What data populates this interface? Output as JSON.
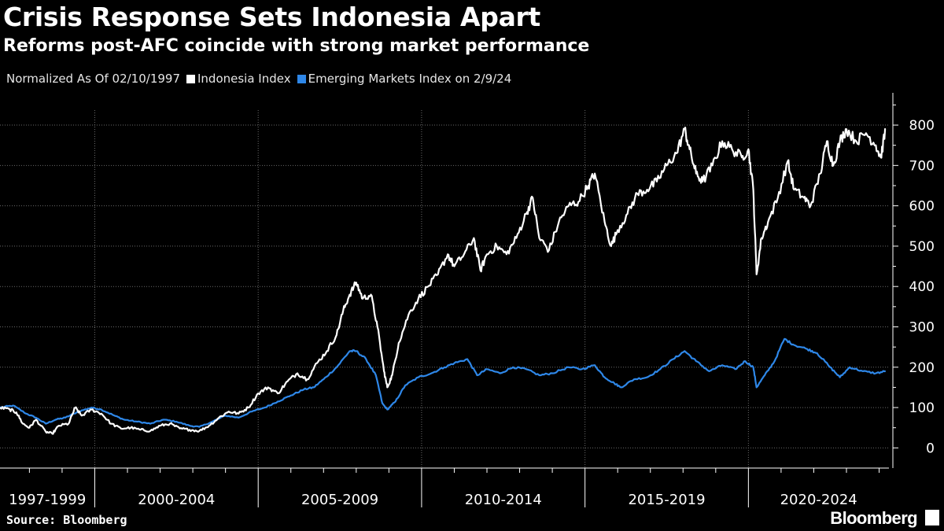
{
  "header": {
    "title": "Crisis Response Sets Indonesia Apart",
    "subtitle": "Reforms post-AFC coincide with strong market performance"
  },
  "legend": {
    "note": "Normalized As Of 02/10/1997",
    "items": [
      {
        "label": "Indonesia Index",
        "color": "#ffffff"
      },
      {
        "label": "Emerging Markets Index on 2/9/24",
        "color": "#2e87e8"
      }
    ]
  },
  "footer": {
    "source": "Source: Bloomberg",
    "brand": "Bloomberg"
  },
  "chart_data": {
    "type": "line",
    "title": "Crisis Response Sets Indonesia Apart",
    "xlabel": "",
    "ylabel": "",
    "ylim": [
      -50,
      880
    ],
    "yticks": [
      0,
      100,
      200,
      300,
      400,
      500,
      600,
      700,
      800
    ],
    "xlim": [
      1997.1,
      2024.3
    ],
    "x_period_labels": [
      "1997-1999",
      "2000-2004",
      "2005-2009",
      "2010-2014",
      "2015-2019",
      "2020-2024"
    ],
    "x_period_bounds": [
      2000,
      2005,
      2010,
      2015,
      2020
    ],
    "grid": true,
    "legend_position": "top-left",
    "series": [
      {
        "name": "Indonesia Index",
        "color": "#ffffff",
        "points": [
          [
            1997.1,
            100
          ],
          [
            1997.4,
            95
          ],
          [
            1997.6,
            88
          ],
          [
            1997.8,
            60
          ],
          [
            1998.0,
            50
          ],
          [
            1998.2,
            70
          ],
          [
            1998.5,
            40
          ],
          [
            1998.7,
            35
          ],
          [
            1998.9,
            55
          ],
          [
            1999.2,
            60
          ],
          [
            1999.4,
            100
          ],
          [
            1999.6,
            80
          ],
          [
            1999.9,
            95
          ],
          [
            2000.2,
            85
          ],
          [
            2000.5,
            60
          ],
          [
            2000.8,
            48
          ],
          [
            2001.1,
            50
          ],
          [
            2001.4,
            45
          ],
          [
            2001.7,
            42
          ],
          [
            2002.0,
            55
          ],
          [
            2002.3,
            60
          ],
          [
            2002.6,
            48
          ],
          [
            2002.9,
            45
          ],
          [
            2003.2,
            42
          ],
          [
            2003.5,
            55
          ],
          [
            2003.8,
            75
          ],
          [
            2004.1,
            90
          ],
          [
            2004.4,
            85
          ],
          [
            2004.7,
            100
          ],
          [
            2005.0,
            135
          ],
          [
            2005.3,
            150
          ],
          [
            2005.6,
            135
          ],
          [
            2005.9,
            165
          ],
          [
            2006.2,
            185
          ],
          [
            2006.5,
            170
          ],
          [
            2006.8,
            210
          ],
          [
            2007.1,
            240
          ],
          [
            2007.4,
            280
          ],
          [
            2007.6,
            340
          ],
          [
            2007.8,
            380
          ],
          [
            2008.0,
            410
          ],
          [
            2008.2,
            370
          ],
          [
            2008.45,
            380
          ],
          [
            2008.65,
            300
          ],
          [
            2008.85,
            190
          ],
          [
            2008.95,
            150
          ],
          [
            2009.1,
            180
          ],
          [
            2009.3,
            260
          ],
          [
            2009.6,
            330
          ],
          [
            2009.9,
            370
          ],
          [
            2010.2,
            400
          ],
          [
            2010.5,
            430
          ],
          [
            2010.8,
            480
          ],
          [
            2011.0,
            450
          ],
          [
            2011.3,
            480
          ],
          [
            2011.6,
            520
          ],
          [
            2011.8,
            440
          ],
          [
            2012.0,
            480
          ],
          [
            2012.3,
            500
          ],
          [
            2012.6,
            480
          ],
          [
            2012.9,
            520
          ],
          [
            2013.2,
            580
          ],
          [
            2013.4,
            620
          ],
          [
            2013.6,
            520
          ],
          [
            2013.9,
            490
          ],
          [
            2014.2,
            560
          ],
          [
            2014.5,
            600
          ],
          [
            2014.8,
            610
          ],
          [
            2015.1,
            650
          ],
          [
            2015.3,
            680
          ],
          [
            2015.6,
            560
          ],
          [
            2015.8,
            500
          ],
          [
            2016.0,
            540
          ],
          [
            2016.3,
            580
          ],
          [
            2016.6,
            630
          ],
          [
            2016.9,
            640
          ],
          [
            2017.2,
            660
          ],
          [
            2017.5,
            700
          ],
          [
            2017.8,
            730
          ],
          [
            2018.05,
            790
          ],
          [
            2018.2,
            740
          ],
          [
            2018.4,
            680
          ],
          [
            2018.6,
            660
          ],
          [
            2018.9,
            700
          ],
          [
            2019.2,
            760
          ],
          [
            2019.5,
            740
          ],
          [
            2019.8,
            720
          ],
          [
            2020.0,
            740
          ],
          [
            2020.15,
            640
          ],
          [
            2020.25,
            430
          ],
          [
            2020.4,
            520
          ],
          [
            2020.6,
            560
          ],
          [
            2020.9,
            620
          ],
          [
            2021.2,
            710
          ],
          [
            2021.4,
            640
          ],
          [
            2021.7,
            620
          ],
          [
            2021.9,
            600
          ],
          [
            2022.2,
            680
          ],
          [
            2022.4,
            760
          ],
          [
            2022.6,
            700
          ],
          [
            2022.8,
            760
          ],
          [
            2023.0,
            790
          ],
          [
            2023.3,
            760
          ],
          [
            2023.6,
            780
          ],
          [
            2023.9,
            750
          ],
          [
            2024.05,
            720
          ],
          [
            2024.2,
            790
          ]
        ]
      },
      {
        "name": "Emerging Markets Index on 2/9/24",
        "color": "#2e87e8",
        "points": [
          [
            1997.1,
            100
          ],
          [
            1997.5,
            105
          ],
          [
            1997.9,
            85
          ],
          [
            1998.2,
            75
          ],
          [
            1998.5,
            60
          ],
          [
            1998.8,
            70
          ],
          [
            1999.1,
            75
          ],
          [
            1999.5,
            90
          ],
          [
            1999.9,
            100
          ],
          [
            2000.2,
            95
          ],
          [
            2000.6,
            80
          ],
          [
            2000.9,
            70
          ],
          [
            2001.3,
            65
          ],
          [
            2001.7,
            60
          ],
          [
            2002.1,
            70
          ],
          [
            2002.5,
            65
          ],
          [
            2002.9,
            55
          ],
          [
            2003.2,
            52
          ],
          [
            2003.6,
            65
          ],
          [
            2004.0,
            80
          ],
          [
            2004.4,
            75
          ],
          [
            2004.8,
            90
          ],
          [
            2005.2,
            100
          ],
          [
            2005.6,
            115
          ],
          [
            2006.0,
            130
          ],
          [
            2006.4,
            145
          ],
          [
            2006.7,
            150
          ],
          [
            2007.0,
            170
          ],
          [
            2007.4,
            200
          ],
          [
            2007.8,
            240
          ],
          [
            2008.0,
            240
          ],
          [
            2008.3,
            220
          ],
          [
            2008.6,
            180
          ],
          [
            2008.8,
            110
          ],
          [
            2008.95,
            95
          ],
          [
            2009.2,
            115
          ],
          [
            2009.5,
            155
          ],
          [
            2009.9,
            175
          ],
          [
            2010.3,
            185
          ],
          [
            2010.7,
            200
          ],
          [
            2011.0,
            210
          ],
          [
            2011.4,
            220
          ],
          [
            2011.7,
            180
          ],
          [
            2012.0,
            195
          ],
          [
            2012.4,
            185
          ],
          [
            2012.8,
            200
          ],
          [
            2013.2,
            195
          ],
          [
            2013.6,
            180
          ],
          [
            2014.0,
            185
          ],
          [
            2014.5,
            200
          ],
          [
            2014.9,
            195
          ],
          [
            2015.3,
            205
          ],
          [
            2015.6,
            175
          ],
          [
            2015.9,
            160
          ],
          [
            2016.1,
            150
          ],
          [
            2016.5,
            170
          ],
          [
            2016.9,
            175
          ],
          [
            2017.3,
            195
          ],
          [
            2017.7,
            220
          ],
          [
            2018.05,
            240
          ],
          [
            2018.4,
            215
          ],
          [
            2018.8,
            190
          ],
          [
            2019.2,
            205
          ],
          [
            2019.6,
            195
          ],
          [
            2019.9,
            215
          ],
          [
            2020.15,
            200
          ],
          [
            2020.25,
            150
          ],
          [
            2020.5,
            180
          ],
          [
            2020.8,
            215
          ],
          [
            2021.1,
            270
          ],
          [
            2021.4,
            255
          ],
          [
            2021.8,
            245
          ],
          [
            2022.1,
            235
          ],
          [
            2022.5,
            200
          ],
          [
            2022.8,
            175
          ],
          [
            2023.1,
            200
          ],
          [
            2023.5,
            190
          ],
          [
            2023.9,
            185
          ],
          [
            2024.2,
            190
          ]
        ]
      }
    ]
  }
}
